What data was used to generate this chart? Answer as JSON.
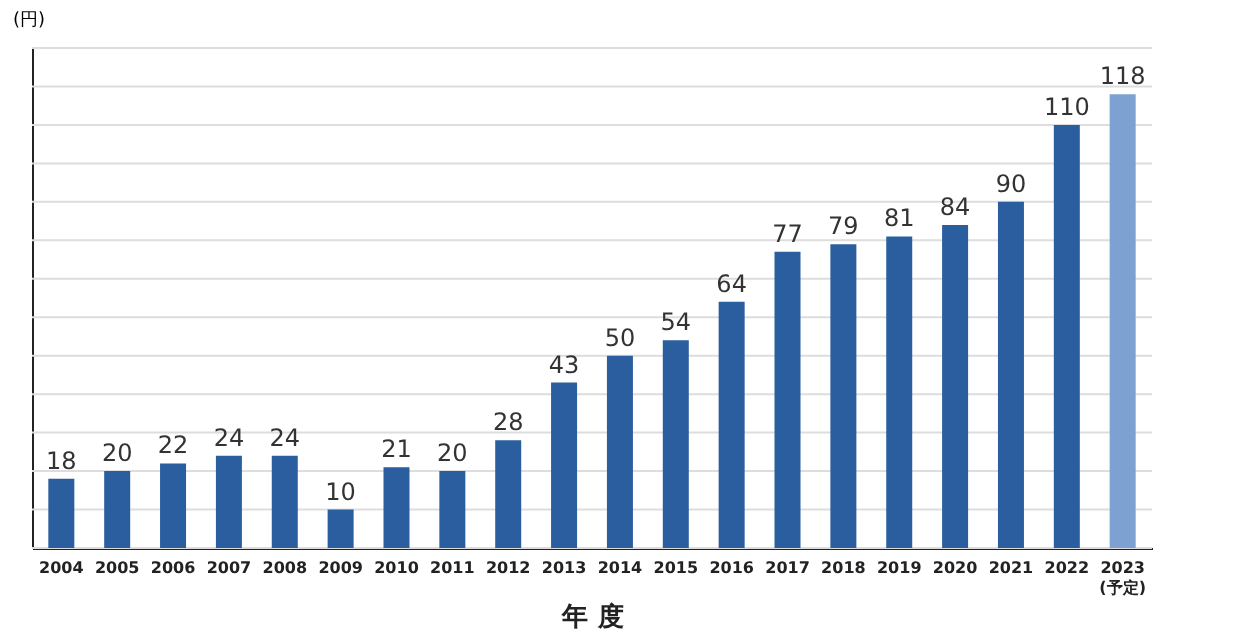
{
  "chart_data": {
    "type": "bar",
    "xlabel": "年 度",
    "ylabel": "(円)",
    "categories": [
      "2004",
      "2005",
      "2006",
      "2007",
      "2008",
      "2009",
      "2010",
      "2011",
      "2012",
      "2013",
      "2014",
      "2015",
      "2016",
      "2017",
      "2018",
      "2019",
      "2020",
      "2021",
      "2022",
      "2023\n(予定)"
    ],
    "values": [
      18,
      20,
      22,
      24,
      24,
      10,
      21,
      20,
      28,
      43,
      50,
      54,
      64,
      77,
      79,
      81,
      84,
      90,
      110,
      118
    ],
    "colors": [
      "#2a5e9e",
      "#2a5e9e",
      "#2a5e9e",
      "#2a5e9e",
      "#2a5e9e",
      "#2a5e9e",
      "#2a5e9e",
      "#2a5e9e",
      "#2a5e9e",
      "#2a5e9e",
      "#2a5e9e",
      "#2a5e9e",
      "#2a5e9e",
      "#2a5e9e",
      "#2a5e9e",
      "#2a5e9e",
      "#2a5e9e",
      "#2a5e9e",
      "#2a5e9e",
      "#7da2d1"
    ],
    "ylim": [
      0,
      130
    ],
    "yticks": [
      0,
      {
        "value": 10,
        "label": null
      },
      {
        "value": 20,
        "label": null
      },
      {
        "value": 30,
        "label": null
      },
      {
        "value": 40,
        "label": null
      },
      {
        "value": 50,
        "label": null
      },
      {
        "value": 60,
        "label": null
      },
      {
        "value": 70,
        "label": null
      },
      {
        "value": 80,
        "label": null
      },
      {
        "value": 90,
        "label": null
      },
      {
        "value": 100,
        "label": null
      },
      {
        "value": 110,
        "label": null
      },
      {
        "value": 120,
        "label": null
      },
      {
        "value": 130,
        "label": null
      }
    ],
    "tick_labels": "x",
    "grid": "y",
    "data_labels": true
  }
}
